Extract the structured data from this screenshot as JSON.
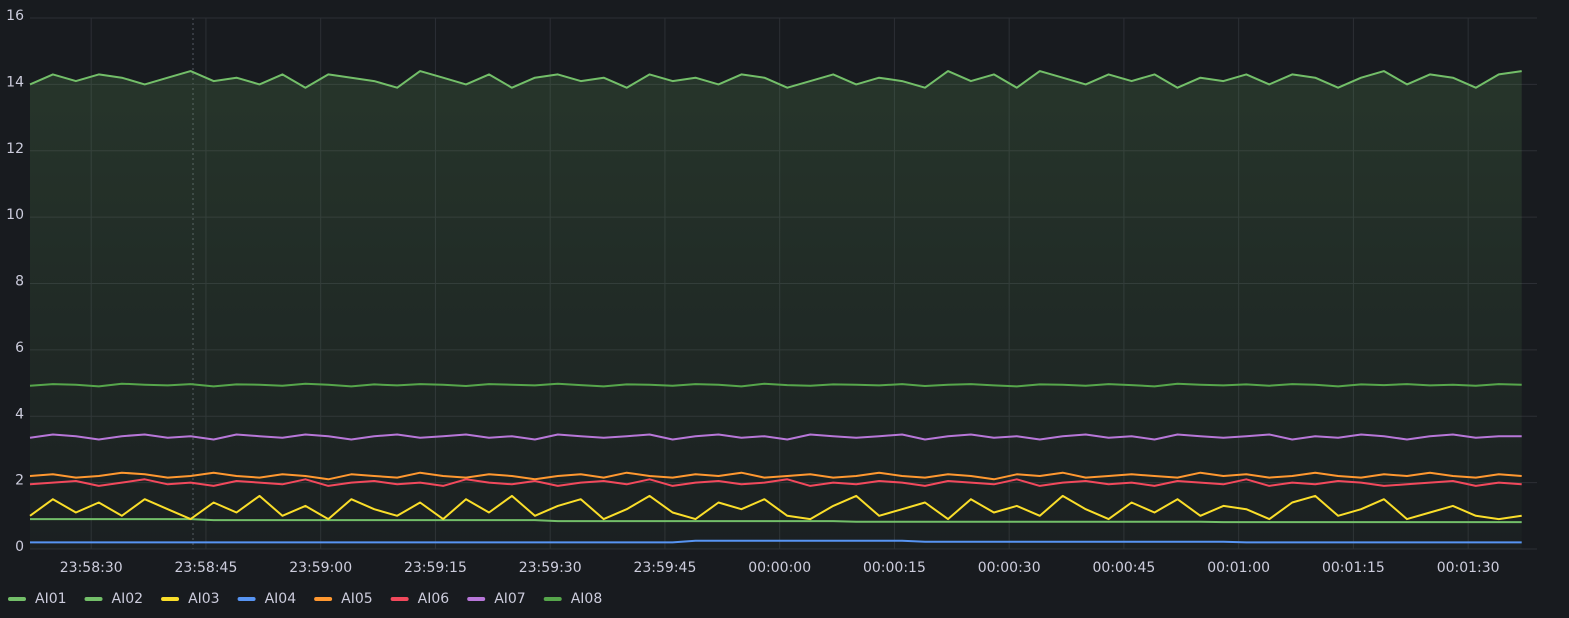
{
  "chart_data": {
    "type": "line",
    "x": [
      "23:58:22",
      "23:58:25",
      "23:58:28",
      "23:58:31",
      "23:58:34",
      "23:58:37",
      "23:58:40",
      "23:58:43",
      "23:58:46",
      "23:58:49",
      "23:58:52",
      "23:58:55",
      "23:58:58",
      "23:59:01",
      "23:59:04",
      "23:59:07",
      "23:59:10",
      "23:59:13",
      "23:59:16",
      "23:59:19",
      "23:59:22",
      "23:59:25",
      "23:59:28",
      "23:59:31",
      "23:59:34",
      "23:59:37",
      "23:59:40",
      "23:59:43",
      "23:59:46",
      "23:59:49",
      "23:59:52",
      "23:59:55",
      "23:59:58",
      "00:00:01",
      "00:00:04",
      "00:00:07",
      "00:00:10",
      "00:00:13",
      "00:00:16",
      "00:00:19",
      "00:00:22",
      "00:00:25",
      "00:00:28",
      "00:00:31",
      "00:00:34",
      "00:00:37",
      "00:00:40",
      "00:00:43",
      "00:00:46",
      "00:00:49",
      "00:00:52",
      "00:00:55",
      "00:00:58",
      "00:01:01",
      "00:01:04",
      "00:01:07",
      "00:01:10",
      "00:01:13",
      "00:01:16",
      "00:01:19",
      "00:01:22",
      "00:01:25",
      "00:01:28",
      "00:01:31",
      "00:01:34",
      "00:01:37"
    ],
    "xlim": [
      "23:58:22",
      "00:01:39"
    ],
    "xticks": [
      "23:58:30",
      "23:58:45",
      "23:59:00",
      "23:59:15",
      "23:59:30",
      "23:59:45",
      "00:00:00",
      "00:00:15",
      "00:00:30",
      "00:00:45",
      "00:01:00",
      "00:01:15",
      "00:01:30"
    ],
    "ylim": [
      0,
      16
    ],
    "yticks": [
      0,
      2,
      4,
      6,
      8,
      10,
      12,
      14,
      16
    ],
    "grid": true,
    "legend": "bottom-left",
    "series": [
      {
        "name": "AI01",
        "color": "#73bf69",
        "area": true,
        "values": [
          14.0,
          14.3,
          14.1,
          14.3,
          14.2,
          14.0,
          14.2,
          14.4,
          14.1,
          14.2,
          14.0,
          14.3,
          13.9,
          14.3,
          14.2,
          14.1,
          13.9,
          14.4,
          14.2,
          14.0,
          14.3,
          13.9,
          14.2,
          14.3,
          14.1,
          14.2,
          13.9,
          14.3,
          14.1,
          14.2,
          14.0,
          14.3,
          14.2,
          13.9,
          14.1,
          14.3,
          14.0,
          14.2,
          14.1,
          13.9,
          14.4,
          14.1,
          14.3,
          13.9,
          14.4,
          14.2,
          14.0,
          14.3,
          14.1,
          14.3,
          13.9,
          14.2,
          14.1,
          14.3,
          14.0,
          14.3,
          14.2,
          13.9,
          14.2,
          14.4,
          14.0,
          14.3,
          14.2,
          13.9,
          14.3,
          14.4
        ]
      },
      {
        "name": "AI02",
        "color": "#73bf69",
        "values": [
          0.9,
          0.9,
          0.9,
          0.9,
          0.9,
          0.9,
          0.9,
          0.9,
          0.87,
          0.87,
          0.87,
          0.87,
          0.87,
          0.87,
          0.87,
          0.87,
          0.87,
          0.87,
          0.87,
          0.87,
          0.87,
          0.87,
          0.87,
          0.84,
          0.84,
          0.84,
          0.84,
          0.84,
          0.84,
          0.84,
          0.84,
          0.84,
          0.84,
          0.84,
          0.84,
          0.84,
          0.82,
          0.82,
          0.82,
          0.82,
          0.82,
          0.82,
          0.82,
          0.82,
          0.82,
          0.82,
          0.82,
          0.82,
          0.82,
          0.82,
          0.82,
          0.82,
          0.81,
          0.81,
          0.81,
          0.81,
          0.81,
          0.81,
          0.81,
          0.81,
          0.81,
          0.81,
          0.81,
          0.81,
          0.81,
          0.81
        ]
      },
      {
        "name": "AI03",
        "color": "#fade2a",
        "values": [
          1.0,
          1.5,
          1.1,
          1.4,
          1.0,
          1.5,
          1.2,
          0.9,
          1.4,
          1.1,
          1.6,
          1.0,
          1.3,
          0.9,
          1.5,
          1.2,
          1.0,
          1.4,
          0.9,
          1.5,
          1.1,
          1.6,
          1.0,
          1.3,
          1.5,
          0.9,
          1.2,
          1.6,
          1.1,
          0.9,
          1.4,
          1.2,
          1.5,
          1.0,
          0.9,
          1.3,
          1.6,
          1.0,
          1.2,
          1.4,
          0.9,
          1.5,
          1.1,
          1.3,
          1.0,
          1.6,
          1.2,
          0.9,
          1.4,
          1.1,
          1.5,
          1.0,
          1.3,
          1.2,
          0.9,
          1.4,
          1.6,
          1.0,
          1.2,
          1.5,
          0.9,
          1.1,
          1.3,
          1.0,
          0.9,
          1.0
        ]
      },
      {
        "name": "AI04",
        "color": "#5794f2",
        "values": [
          0.2,
          0.2,
          0.2,
          0.2,
          0.2,
          0.2,
          0.2,
          0.2,
          0.2,
          0.2,
          0.2,
          0.2,
          0.2,
          0.2,
          0.2,
          0.2,
          0.2,
          0.2,
          0.2,
          0.2,
          0.2,
          0.2,
          0.2,
          0.2,
          0.2,
          0.2,
          0.2,
          0.2,
          0.2,
          0.25,
          0.25,
          0.25,
          0.25,
          0.25,
          0.25,
          0.25,
          0.25,
          0.25,
          0.25,
          0.22,
          0.22,
          0.22,
          0.22,
          0.22,
          0.22,
          0.22,
          0.22,
          0.22,
          0.22,
          0.22,
          0.22,
          0.22,
          0.22,
          0.2,
          0.2,
          0.2,
          0.2,
          0.2,
          0.2,
          0.2,
          0.2,
          0.2,
          0.2,
          0.2,
          0.2,
          0.2
        ]
      },
      {
        "name": "AI05",
        "color": "#ff9830",
        "values": [
          2.2,
          2.25,
          2.15,
          2.2,
          2.3,
          2.25,
          2.15,
          2.2,
          2.3,
          2.2,
          2.15,
          2.25,
          2.2,
          2.1,
          2.25,
          2.2,
          2.15,
          2.3,
          2.2,
          2.15,
          2.25,
          2.2,
          2.1,
          2.2,
          2.25,
          2.15,
          2.3,
          2.2,
          2.15,
          2.25,
          2.2,
          2.3,
          2.15,
          2.2,
          2.25,
          2.15,
          2.2,
          2.3,
          2.2,
          2.15,
          2.25,
          2.2,
          2.1,
          2.25,
          2.2,
          2.3,
          2.15,
          2.2,
          2.25,
          2.2,
          2.15,
          2.3,
          2.2,
          2.25,
          2.15,
          2.2,
          2.3,
          2.2,
          2.15,
          2.25,
          2.2,
          2.3,
          2.2,
          2.15,
          2.25,
          2.2
        ]
      },
      {
        "name": "AI06",
        "color": "#f2495c",
        "values": [
          1.95,
          2.0,
          2.05,
          1.9,
          2.0,
          2.1,
          1.95,
          2.0,
          1.9,
          2.05,
          2.0,
          1.95,
          2.1,
          1.9,
          2.0,
          2.05,
          1.95,
          2.0,
          1.9,
          2.1,
          2.0,
          1.95,
          2.05,
          1.9,
          2.0,
          2.05,
          1.95,
          2.1,
          1.9,
          2.0,
          2.05,
          1.95,
          2.0,
          2.1,
          1.9,
          2.0,
          1.95,
          2.05,
          2.0,
          1.9,
          2.05,
          2.0,
          1.95,
          2.1,
          1.9,
          2.0,
          2.05,
          1.95,
          2.0,
          1.9,
          2.05,
          2.0,
          1.95,
          2.1,
          1.9,
          2.0,
          1.95,
          2.05,
          2.0,
          1.9,
          1.95,
          2.0,
          2.05,
          1.9,
          2.0,
          1.95
        ]
      },
      {
        "name": "AI07",
        "color": "#b877d9",
        "values": [
          3.35,
          3.45,
          3.4,
          3.3,
          3.4,
          3.45,
          3.35,
          3.4,
          3.3,
          3.45,
          3.4,
          3.35,
          3.45,
          3.4,
          3.3,
          3.4,
          3.45,
          3.35,
          3.4,
          3.45,
          3.35,
          3.4,
          3.3,
          3.45,
          3.4,
          3.35,
          3.4,
          3.45,
          3.3,
          3.4,
          3.45,
          3.35,
          3.4,
          3.3,
          3.45,
          3.4,
          3.35,
          3.4,
          3.45,
          3.3,
          3.4,
          3.45,
          3.35,
          3.4,
          3.3,
          3.4,
          3.45,
          3.35,
          3.4,
          3.3,
          3.45,
          3.4,
          3.35,
          3.4,
          3.45,
          3.3,
          3.4,
          3.35,
          3.45,
          3.4,
          3.3,
          3.4,
          3.45,
          3.35,
          3.4,
          3.4
        ]
      },
      {
        "name": "AI08",
        "color": "#56a64b",
        "values": [
          4.92,
          4.97,
          4.95,
          4.9,
          4.98,
          4.95,
          4.93,
          4.97,
          4.9,
          4.96,
          4.95,
          4.92,
          4.98,
          4.95,
          4.9,
          4.96,
          4.93,
          4.97,
          4.95,
          4.91,
          4.97,
          4.95,
          4.93,
          4.98,
          4.94,
          4.9,
          4.96,
          4.95,
          4.92,
          4.97,
          4.95,
          4.9,
          4.98,
          4.94,
          4.92,
          4.96,
          4.95,
          4.93,
          4.97,
          4.91,
          4.95,
          4.97,
          4.93,
          4.9,
          4.96,
          4.95,
          4.92,
          4.97,
          4.94,
          4.9,
          4.98,
          4.95,
          4.93,
          4.96,
          4.92,
          4.97,
          4.95,
          4.9,
          4.96,
          4.94,
          4.97,
          4.93,
          4.95,
          4.92,
          4.97,
          4.95
        ]
      }
    ]
  }
}
